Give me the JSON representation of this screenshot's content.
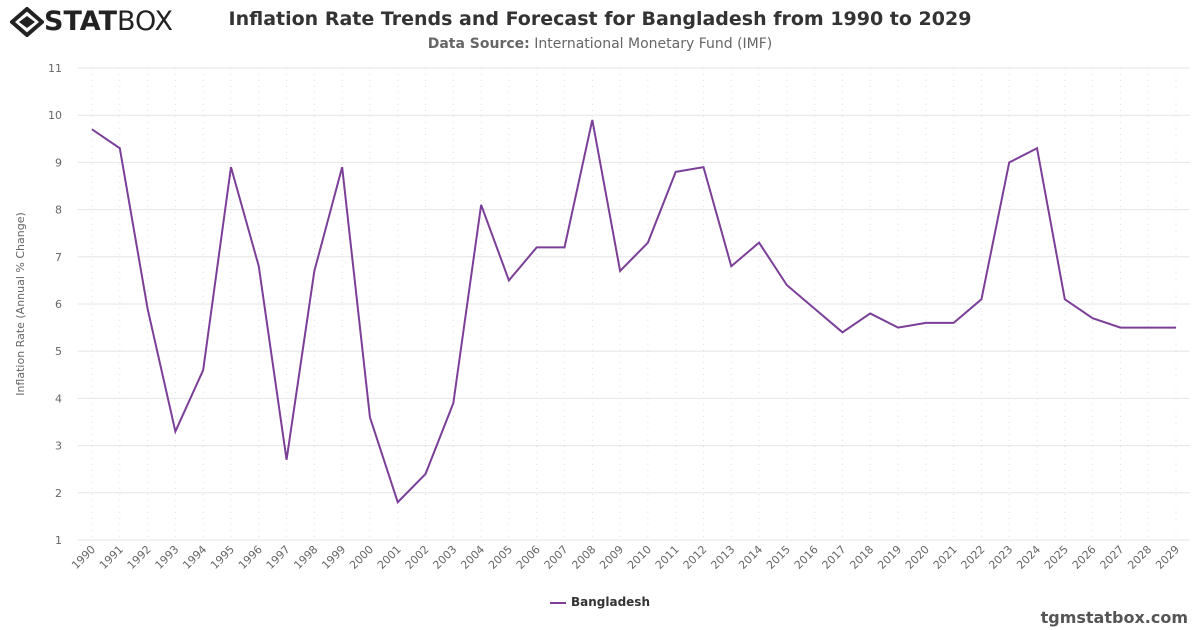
{
  "logo": {
    "bold": "STAT",
    "light": "BOX"
  },
  "header": {
    "title": "Inflation Rate Trends and Forecast for Bangladesh from 1990 to 2029",
    "subtitle_label": "Data Source:",
    "subtitle_value": "International Monetary Fund (IMF)"
  },
  "credit": "tgmstatbox.com",
  "chart_data": {
    "type": "line",
    "title": "Inflation Rate Trends and Forecast for Bangladesh from 1990 to 2029",
    "xlabel": "",
    "ylabel": "Inflation Rate (Annual % Change)",
    "ylim": [
      1,
      11
    ],
    "yticks": [
      1,
      2,
      3,
      4,
      5,
      6,
      7,
      8,
      9,
      10,
      11
    ],
    "grid": true,
    "legend": "bottom-center",
    "color": "#7b3f98",
    "x": [
      "1990",
      "1991",
      "1992",
      "1993",
      "1994",
      "1995",
      "1996",
      "1997",
      "1998",
      "1999",
      "2000",
      "2001",
      "2002",
      "2003",
      "2004",
      "2005",
      "2006",
      "2007",
      "2008",
      "2009",
      "2010",
      "2011",
      "2012",
      "2013",
      "2014",
      "2015",
      "2016",
      "2017",
      "2018",
      "2019",
      "2020",
      "2021",
      "2022",
      "2023",
      "2024",
      "2025",
      "2026",
      "2027",
      "2028",
      "2029"
    ],
    "series": [
      {
        "name": "Bangladesh",
        "values": [
          9.7,
          9.3,
          5.9,
          3.3,
          4.6,
          8.9,
          6.8,
          2.7,
          6.7,
          8.9,
          3.6,
          1.8,
          2.4,
          3.9,
          8.1,
          6.5,
          7.2,
          7.2,
          9.9,
          6.7,
          7.3,
          8.8,
          8.9,
          6.8,
          7.3,
          6.4,
          5.9,
          5.4,
          5.8,
          5.5,
          5.6,
          5.6,
          6.1,
          9.0,
          9.3,
          6.1,
          5.7,
          5.5,
          5.5,
          5.5
        ]
      }
    ]
  }
}
